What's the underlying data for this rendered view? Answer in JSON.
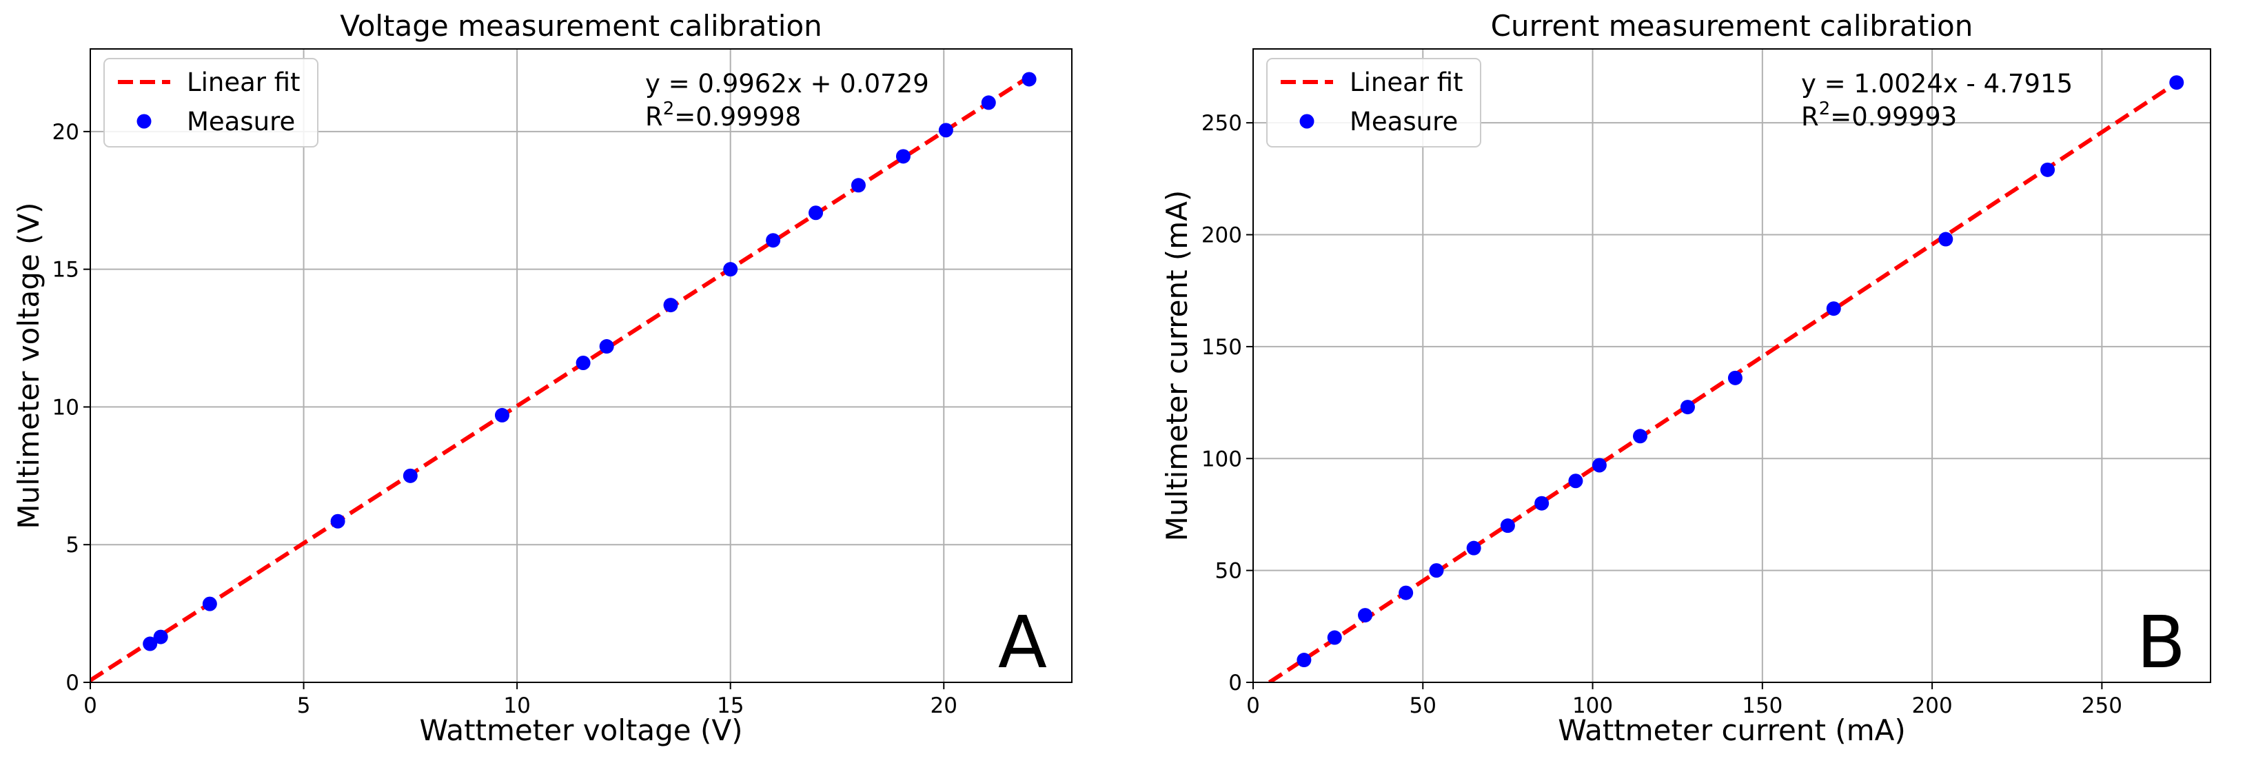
{
  "chart_data": [
    {
      "type": "scatter",
      "title": "Voltage measurement calibration",
      "xlabel": "Wattmeter voltage (V)",
      "ylabel": "Multimeter voltage (V)",
      "xlim": [
        0,
        23
      ],
      "ylim": [
        0,
        23
      ],
      "xticks": [
        0,
        5,
        10,
        15,
        20
      ],
      "yticks": [
        0,
        5,
        10,
        15,
        20
      ],
      "grid": true,
      "legend_position": "top-left",
      "legend": [
        "Linear fit",
        "Measure"
      ],
      "equation": "y = 0.9962x + 0.0729",
      "r2_prefix": "R",
      "r2_exp": "2",
      "r2_value": "=0.99998",
      "panel_label": "A",
      "fit": {
        "slope": 0.9962,
        "intercept": 0.0729,
        "x_range": [
          0,
          22
        ]
      },
      "series": [
        {
          "name": "Measure",
          "x": [
            1.4,
            1.65,
            2.8,
            5.8,
            7.5,
            9.65,
            11.55,
            12.1,
            13.6,
            15.0,
            16.0,
            17.0,
            18.0,
            19.05,
            20.05,
            21.05,
            22.0
          ],
          "y": [
            1.4,
            1.65,
            2.85,
            5.85,
            7.5,
            9.7,
            11.6,
            12.2,
            13.7,
            15.0,
            16.05,
            17.05,
            18.05,
            19.1,
            20.05,
            21.05,
            21.9
          ]
        }
      ]
    },
    {
      "type": "scatter",
      "title": "Current measurement calibration",
      "xlabel": "Wattmeter current (mA)",
      "ylabel": "Multimeter current (mA)",
      "xlim": [
        0,
        282
      ],
      "ylim": [
        0,
        283
      ],
      "xticks": [
        0,
        50,
        100,
        150,
        200,
        250
      ],
      "yticks": [
        0,
        50,
        100,
        150,
        200,
        250
      ],
      "grid": true,
      "legend_position": "top-left",
      "legend": [
        "Linear fit",
        "Measure"
      ],
      "equation": "y = 1.0024x - 4.7915",
      "r2_prefix": "R",
      "r2_exp": "2",
      "r2_value": "=0.99993",
      "panel_label": "B",
      "fit": {
        "slope": 1.0024,
        "intercept": -4.7915,
        "x_range": [
          4.78,
          272
        ]
      },
      "series": [
        {
          "name": "Measure",
          "x": [
            15,
            24,
            33,
            45,
            54,
            65,
            75,
            85,
            95,
            102,
            114,
            128,
            142,
            171,
            204,
            234,
            272
          ],
          "y": [
            10,
            20,
            30,
            40,
            50,
            60,
            70,
            80,
            90,
            97,
            110,
            123,
            136,
            167,
            198,
            229,
            268
          ]
        }
      ]
    }
  ]
}
